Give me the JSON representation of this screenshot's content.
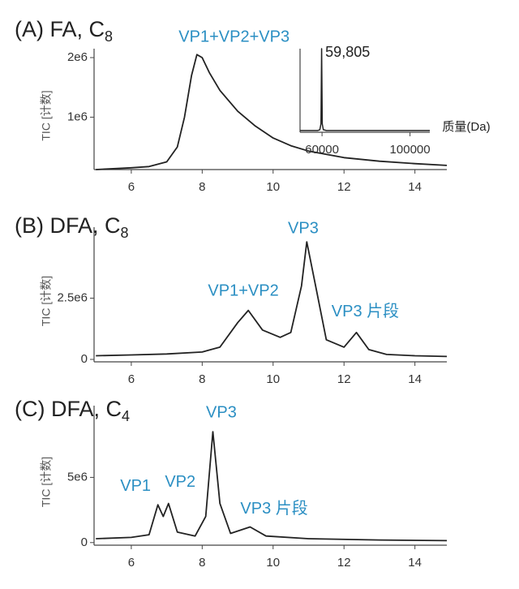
{
  "chart_data": [
    {
      "type": "line",
      "title": "(A) FA, C",
      "title_sub": "8",
      "ylabel": "TIC [计数]",
      "xlim": [
        4.95,
        14.9
      ],
      "xticks": [
        6,
        8,
        10,
        12,
        14
      ],
      "ylim": [
        120000,
        2150000
      ],
      "yticks": [
        {
          "value": 1000000,
          "label": "1e6"
        },
        {
          "value": 2000000,
          "label": "2e6"
        }
      ],
      "color": "#222222",
      "x": [
        5,
        6,
        6.5,
        7,
        7.3,
        7.5,
        7.7,
        7.85,
        8.0,
        8.2,
        8.5,
        9,
        9.5,
        10,
        10.5,
        11,
        12,
        13,
        14,
        14.9
      ],
      "values": [
        120000,
        150000,
        170000,
        250000,
        500000,
        1000000,
        1700000,
        2050000,
        2000000,
        1750000,
        1450000,
        1100000,
        850000,
        650000,
        520000,
        430000,
        320000,
        260000,
        220000,
        190000
      ],
      "annotations": [
        {
          "text": "VP1+VP2+VP3",
          "x": 8.9,
          "y": 2340000
        }
      ]
    },
    {
      "type": "line",
      "xlabel": "质量(Da)",
      "xlim": [
        50000,
        109000
      ],
      "xticks": [
        60000,
        100000
      ],
      "ylim": [
        0,
        1
      ],
      "color": "#222222",
      "x": [
        50000,
        58000,
        59000,
        59500,
        59805,
        60100,
        60600,
        62000,
        109000
      ],
      "values": [
        0.02,
        0.02,
        0.03,
        0.1,
        1.0,
        0.1,
        0.03,
        0.02,
        0.02
      ],
      "annotations": [
        {
          "text": "59,805",
          "x": 61500,
          "y": 0.95
        }
      ]
    },
    {
      "type": "line",
      "title": "(B) DFA, C",
      "title_sub": "8",
      "ylabel": "TIC [计数]",
      "xlim": [
        4.95,
        14.9
      ],
      "xticks": [
        6,
        8,
        10,
        12,
        14
      ],
      "ylim": [
        -100000,
        5400000
      ],
      "yticks": [
        0,
        {
          "value": 2500000,
          "label": "2.5e6"
        }
      ],
      "color": "#222222",
      "x": [
        5,
        6,
        7,
        8,
        8.5,
        9,
        9.3,
        9.7,
        10.2,
        10.5,
        10.8,
        10.95,
        11.2,
        11.5,
        12,
        12.35,
        12.7,
        13.2,
        14,
        14.9
      ],
      "values": [
        150000,
        180000,
        220000,
        300000,
        500000,
        1500000,
        2000000,
        1200000,
        900000,
        1100000,
        3000000,
        4800000,
        3000000,
        800000,
        500000,
        1100000,
        400000,
        200000,
        150000,
        120000
      ],
      "annotations": [
        {
          "text": "VP3",
          "x": 10.85,
          "y": 5330000
        },
        {
          "text": "VP1+VP2",
          "x": 9.16,
          "y": 2770000
        },
        {
          "text": "VP3 片段",
          "x": 12.6,
          "y": 1930000
        }
      ]
    },
    {
      "type": "line",
      "title": "(C) DFA, C",
      "title_sub": "4",
      "ylabel": "TIC [计数]",
      "xlim": [
        4.95,
        14.9
      ],
      "xticks": [
        6,
        8,
        10,
        12,
        14
      ],
      "ylim": [
        -200000,
        10500000
      ],
      "yticks": [
        0,
        {
          "value": 5000000,
          "label": "5e6"
        }
      ],
      "color": "#222222",
      "x": [
        5,
        6,
        6.5,
        6.75,
        6.9,
        7.05,
        7.3,
        7.8,
        8.1,
        8.3,
        8.5,
        8.8,
        9.35,
        9.8,
        11,
        13,
        14.9
      ],
      "values": [
        300000,
        400000,
        600000,
        2900000,
        2000000,
        3000000,
        800000,
        500000,
        2000000,
        8500000,
        3000000,
        700000,
        1200000,
        500000,
        300000,
        200000,
        150000
      ],
      "annotations": [
        {
          "text": "VP3",
          "x": 8.54,
          "y": 9940000
        },
        {
          "text": "VP1",
          "x": 6.12,
          "y": 4310000
        },
        {
          "text": "VP2",
          "x": 7.38,
          "y": 4620000
        },
        {
          "text": "VP3 片段",
          "x": 10.03,
          "y": 2560000
        }
      ]
    }
  ]
}
